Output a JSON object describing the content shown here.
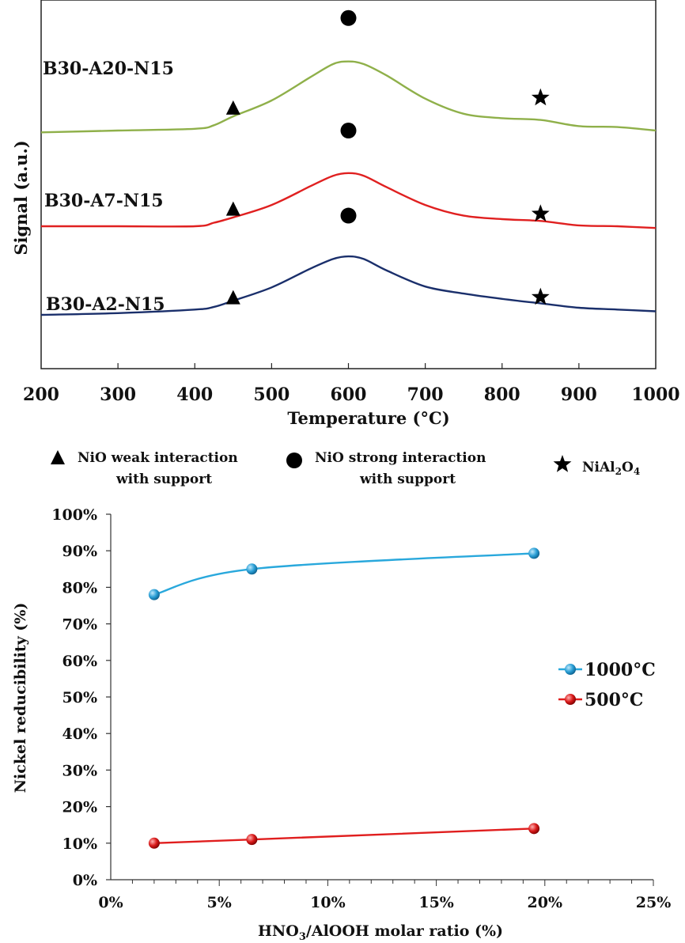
{
  "chart_data": [
    {
      "type": "line",
      "xlabel": "Temperature (°C)",
      "ylabel": "Signal (a.u.)",
      "xlim": [
        200,
        1000
      ],
      "xticks": [
        "200",
        "300",
        "400",
        "500",
        "600",
        "700",
        "800",
        "900",
        "1000"
      ],
      "grid": false,
      "series": [
        {
          "name": "B30-A20-N15",
          "color": "#8fb04a",
          "x": [
            200,
            300,
            400,
            425,
            450,
            500,
            550,
            580,
            600,
            620,
            650,
            700,
            750,
            800,
            850,
            900,
            950,
            1000
          ],
          "y": [
            2.06,
            2.08,
            2.1,
            2.14,
            2.24,
            2.42,
            2.68,
            2.83,
            2.86,
            2.83,
            2.7,
            2.44,
            2.27,
            2.22,
            2.2,
            2.13,
            2.12,
            2.08
          ]
        },
        {
          "name": "B30-A7-N15",
          "color": "#e02020",
          "x": [
            200,
            300,
            400,
            425,
            450,
            500,
            550,
            580,
            600,
            620,
            650,
            700,
            750,
            800,
            850,
            900,
            950,
            1000
          ],
          "y": [
            1.0,
            1.0,
            1.0,
            1.04,
            1.1,
            1.24,
            1.45,
            1.57,
            1.6,
            1.57,
            1.44,
            1.24,
            1.12,
            1.08,
            1.06,
            1.01,
            1.0,
            0.98
          ]
        },
        {
          "name": "B30-A2-N15",
          "color": "#1a2f6b",
          "x": [
            200,
            300,
            400,
            425,
            450,
            500,
            550,
            580,
            600,
            620,
            650,
            700,
            750,
            800,
            850,
            900,
            950,
            1000
          ],
          "y": [
            0.0,
            0.02,
            0.06,
            0.09,
            0.16,
            0.31,
            0.52,
            0.63,
            0.66,
            0.63,
            0.5,
            0.32,
            0.24,
            0.18,
            0.13,
            0.08,
            0.06,
            0.04
          ]
        }
      ],
      "markers": [
        {
          "symbol": "triangle",
          "x": 450,
          "y": [
            2.34,
            1.2,
            0.2
          ]
        },
        {
          "symbol": "circle",
          "x": 600,
          "y": [
            3.35,
            2.08,
            1.12
          ]
        },
        {
          "symbol": "star",
          "x": 850,
          "y": [
            2.45,
            1.14,
            0.2
          ]
        }
      ],
      "legend": {
        "position": "bottom",
        "items": [
          {
            "symbol": "triangle",
            "line1": "NiO weak interaction",
            "line2": "with support"
          },
          {
            "symbol": "circle",
            "line1": "NiO strong interaction",
            "line2": "with support"
          },
          {
            "symbol": "star",
            "label_main": "NiAl",
            "sub1": "2",
            "mid": "O",
            "sub2": "4"
          }
        ]
      }
    },
    {
      "type": "line",
      "xlabel_main": "HNO",
      "xlabel_sub": "3",
      "xlabel_rest": "/AlOOH molar ratio (%)",
      "ylabel": "Nickel reducibility (%)",
      "xlim": [
        0,
        25
      ],
      "ylim": [
        0,
        100
      ],
      "xticks": [
        "0%",
        "5%",
        "10%",
        "15%",
        "20%",
        "25%"
      ],
      "yticks": [
        "0%",
        "10%",
        "20%",
        "30%",
        "40%",
        "50%",
        "60%",
        "70%",
        "80%",
        "90%",
        "100%"
      ],
      "grid": false,
      "legend_position": "right",
      "series": [
        {
          "name": "1000°C",
          "color": "#29a8dc",
          "marker_color": "#2a9fd6",
          "x": [
            2,
            6.5,
            19.5
          ],
          "y": [
            78,
            85,
            89.3
          ]
        },
        {
          "name": "500°C",
          "color": "#e01e1e",
          "marker_color": "#d91a1a",
          "x": [
            2,
            6.5,
            19.5
          ],
          "y": [
            10,
            11,
            14
          ]
        }
      ]
    }
  ]
}
